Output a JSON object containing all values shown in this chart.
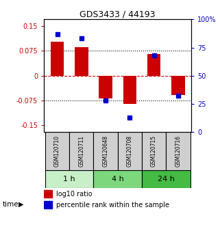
{
  "title": "GDS3433 / 44193",
  "samples": [
    "GSM120710",
    "GSM120711",
    "GSM120648",
    "GSM120708",
    "GSM120715",
    "GSM120716"
  ],
  "log10_ratio": [
    0.103,
    0.086,
    -0.068,
    -0.085,
    0.065,
    -0.058
  ],
  "percentile_rank": [
    87,
    83,
    28,
    13,
    68,
    32
  ],
  "time_groups": [
    {
      "label": "1 h",
      "start": 0,
      "end": 2,
      "color": "#c8f0c8"
    },
    {
      "label": "4 h",
      "start": 2,
      "end": 4,
      "color": "#7dd87d"
    },
    {
      "label": "24 h",
      "start": 4,
      "end": 6,
      "color": "#44bb44"
    }
  ],
  "bar_color_red": "#cc0000",
  "bar_color_blue": "#0000cc",
  "ylim_left": [
    -0.17,
    0.17
  ],
  "ylim_right": [
    0,
    100
  ],
  "yticks_left": [
    -0.15,
    -0.075,
    0,
    0.075,
    0.15
  ],
  "yticks_right": [
    0,
    25,
    50,
    75,
    100
  ],
  "ytick_labels_left": [
    "-0.15",
    "-0.075",
    "0",
    "0.075",
    "0.15"
  ],
  "ytick_labels_right": [
    "0",
    "25",
    "50",
    "75",
    "100%"
  ],
  "hlines_dotted": [
    -0.075,
    0.075
  ],
  "hline_dashed": 0,
  "bar_width": 0.55,
  "sample_box_color": "#d0d0d0",
  "time_label": "time"
}
